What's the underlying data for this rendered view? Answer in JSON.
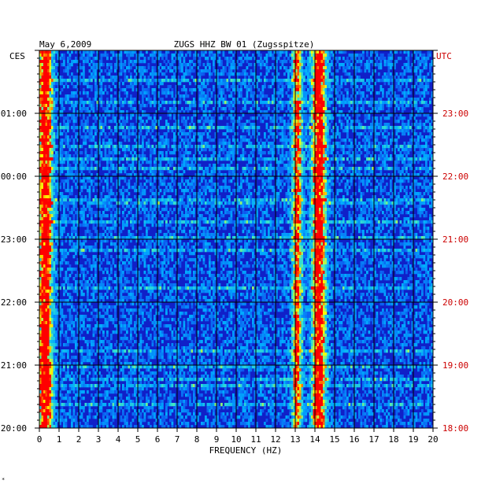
{
  "chart_data": {
    "type": "heatmap",
    "date": "May 6,2009",
    "title": "ZUGS HHZ BW 01 (Zugsspitze)",
    "xlabel": "FREQUENCY (HZ)",
    "xlim": [
      0,
      20
    ],
    "x_ticks": [
      "0",
      "1",
      "2",
      "3",
      "4",
      "5",
      "6",
      "7",
      "8",
      "9",
      "10",
      "11",
      "12",
      "13",
      "14",
      "15",
      "16",
      "17",
      "18",
      "19",
      "20"
    ],
    "left_axis_label": "CES",
    "right_axis_label": "UTC",
    "left_ticks": [
      "01:00",
      "00:00",
      "23:00",
      "22:00",
      "21:00",
      "20:00"
    ],
    "right_ticks": [
      "23:00",
      "22:00",
      "21:00",
      "20:00",
      "19:00",
      "18:00"
    ],
    "time_rows_hours": 6,
    "colors": {
      "background_field": "#1020c8",
      "low": "#0000a0",
      "mid": "#00c8ff",
      "high": "#ffff00",
      "peak": "#ff0000",
      "left_labels": "#000000",
      "right_labels": "#cc0000",
      "grid": "#000000"
    },
    "energy_bands_hz": [
      {
        "center": 0.3,
        "width": 0.35,
        "strength": 0.95
      },
      {
        "center": 13.1,
        "width": 0.25,
        "strength": 0.7
      },
      {
        "center": 14.2,
        "width": 0.35,
        "strength": 0.9
      }
    ],
    "grid": true
  },
  "footer_mark": "*"
}
